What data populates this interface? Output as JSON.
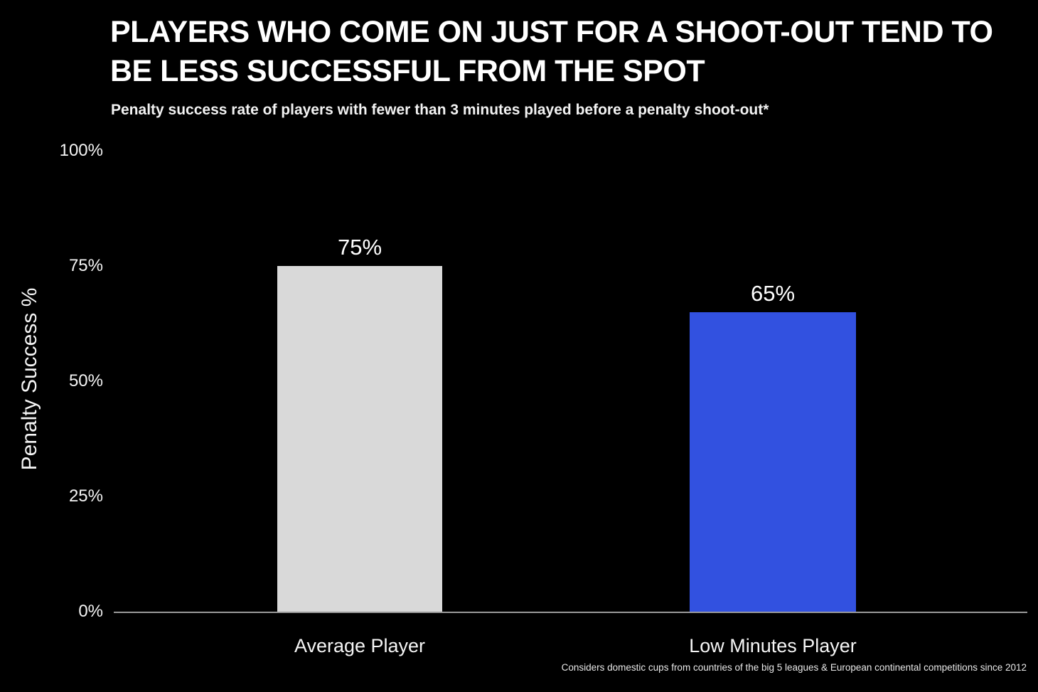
{
  "title_line1": "PLAYERS WHO COME ON JUST FOR A SHOOT-OUT TEND TO",
  "title_line2": "BE LESS SUCCESSFUL FROM THE SPOT",
  "subtitle": "Penalty success rate of players with fewer than 3 minutes played before a penalty shoot-out*",
  "footnote": "Considers domestic cups from countries of the big 5 leagues & European continental competitions since 2012",
  "chart_data": {
    "type": "bar",
    "title": "PLAYERS WHO COME ON JUST FOR A SHOOT-OUT TEND TO BE LESS SUCCESSFUL FROM THE SPOT",
    "subtitle": "Penalty success rate of players with fewer than 3 minutes played before a penalty shoot-out*",
    "xlabel": "",
    "ylabel": "Penalty Success %",
    "ylim": [
      0,
      100
    ],
    "yticks": [
      0,
      25,
      50,
      75,
      100
    ],
    "ytick_labels": [
      "0%",
      "25%",
      "50%",
      "75%",
      "100%"
    ],
    "categories": [
      "Average Player",
      "Low Minutes Player"
    ],
    "values": [
      75,
      65
    ],
    "value_labels": [
      "75%",
      "65%"
    ],
    "bar_colors": [
      "#d9d9d9",
      "#3251e0"
    ],
    "grid": false,
    "legend": false,
    "background": "#000000",
    "footnote": "Considers domestic cups from countries of the big 5 leagues & European continental competitions since 2012"
  }
}
